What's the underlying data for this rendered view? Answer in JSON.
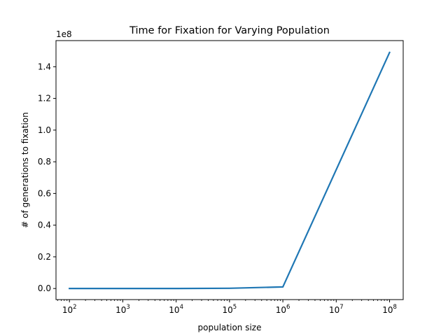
{
  "chart_data": {
    "type": "line",
    "title": "Time for Fixation for Varying Population",
    "xlabel": "population size",
    "ylabel": "# of generations to fixation",
    "xscale": "log",
    "yscale": "linear",
    "y_offset_label": "1e8",
    "xlim": [
      56,
      180000000
    ],
    "ylim": [
      -7000000,
      156500000
    ],
    "x_ticks": [
      {
        "value": 100,
        "base": "10",
        "exp": "2"
      },
      {
        "value": 1000,
        "base": "10",
        "exp": "3"
      },
      {
        "value": 10000,
        "base": "10",
        "exp": "4"
      },
      {
        "value": 100000,
        "base": "10",
        "exp": "5"
      },
      {
        "value": 1000000,
        "base": "10",
        "exp": "6"
      },
      {
        "value": 10000000,
        "base": "10",
        "exp": "7"
      },
      {
        "value": 100000000,
        "base": "10",
        "exp": "8"
      }
    ],
    "y_ticks": [
      {
        "value": 0,
        "label": "0.0"
      },
      {
        "value": 20000000,
        "label": "0.2"
      },
      {
        "value": 40000000,
        "label": "0.4"
      },
      {
        "value": 60000000,
        "label": "0.6"
      },
      {
        "value": 80000000,
        "label": "0.8"
      },
      {
        "value": 100000000,
        "label": "1.0"
      },
      {
        "value": 120000000,
        "label": "1.2"
      },
      {
        "value": 140000000,
        "label": "1.4"
      }
    ],
    "grid": false,
    "series": [
      {
        "color": "#1f77b4",
        "x": [
          100,
          1000,
          10000,
          100000,
          1000000,
          100000000
        ],
        "y": [
          100,
          1000,
          10000,
          150000,
          1000000,
          149000000
        ]
      }
    ]
  }
}
